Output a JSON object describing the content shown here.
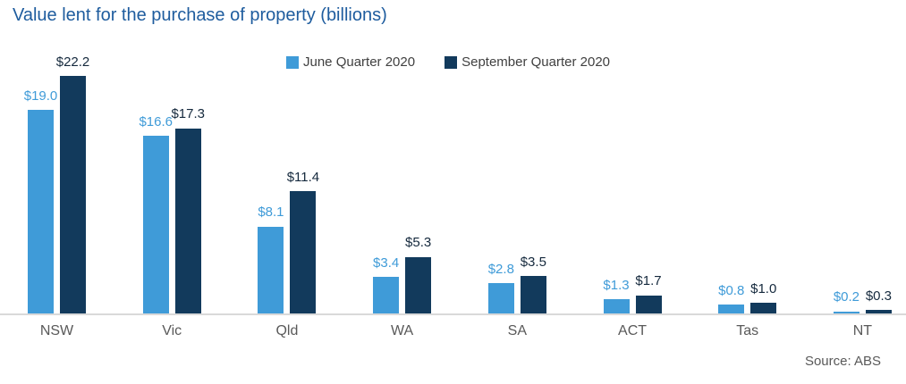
{
  "title": "Value lent for the purchase of property (billions)",
  "source": "Source: ABS",
  "legend": [
    {
      "label": "June Quarter 2020",
      "color": "#3F9BD8"
    },
    {
      "label": "September Quarter 2020",
      "color": "#123A5C"
    }
  ],
  "colors": {
    "title": "#1E5C9E",
    "june_bar": "#3F9BD8",
    "june_label": "#3F9BD8",
    "september_bar": "#123A5C",
    "september_label": "#15293D",
    "axis_line": "#D9D9D9",
    "category_label": "#595959",
    "source_text": "#595959",
    "legend_text": "#404040"
  },
  "chart_data": {
    "type": "bar",
    "title": "Value lent for the purchase of property (billions)",
    "categories": [
      "NSW",
      "Vic",
      "Qld",
      "WA",
      "SA",
      "ACT",
      "Tas",
      "NT"
    ],
    "series": [
      {
        "name": "June Quarter 2020",
        "color": "#3F9BD8",
        "label_color": "#3F9BD8",
        "values": [
          19.0,
          16.6,
          8.1,
          3.4,
          2.8,
          1.3,
          0.8,
          0.2
        ]
      },
      {
        "name": "September Quarter 2020",
        "color": "#123A5C",
        "label_color": "#15293D",
        "values": [
          22.2,
          17.3,
          11.4,
          5.3,
          3.5,
          1.7,
          1.0,
          0.3
        ]
      }
    ],
    "value_prefix": "$",
    "value_decimals": 1,
    "data_labels": true,
    "xlabel": "",
    "ylabel": "",
    "ylim": [
      0,
      24
    ],
    "grid": false,
    "y_axis_visible": false,
    "legend_position": "top-center",
    "source": "Source: ABS"
  }
}
